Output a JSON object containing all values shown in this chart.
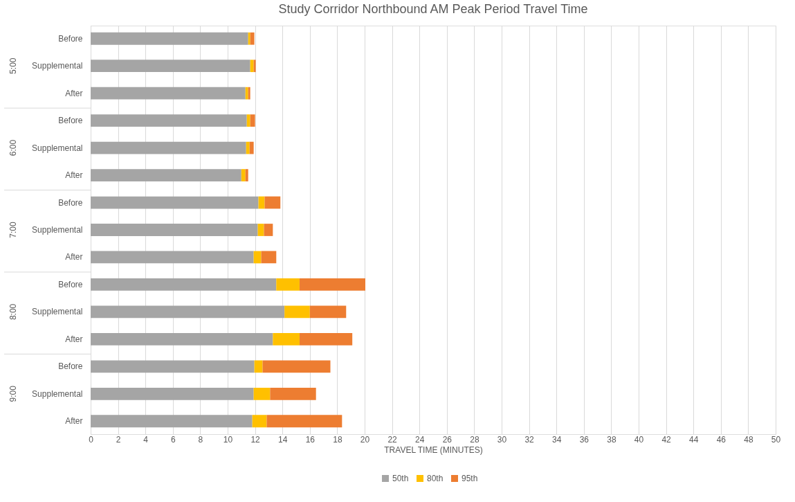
{
  "chart_data": {
    "type": "bar",
    "orientation": "horizontal",
    "stacked": true,
    "title": "Study Corridor Northbound AM Peak Period Travel Time",
    "xlabel": "TRAVEL TIME (MINUTES)",
    "categories": [
      "Before",
      "Supplemental",
      "After",
      "Before",
      "Supplemental",
      "After",
      "Before",
      "Supplemental",
      "After",
      "Before",
      "Supplemental",
      "After",
      "Before",
      "Supplemental",
      "After"
    ],
    "annotations": [
      "5:00",
      "6:00",
      "7:00",
      "8:00",
      "9:00"
    ],
    "series": [
      {
        "name": "50th",
        "color": "#a5a5a5",
        "values": [
          11.5,
          11.65,
          11.3,
          11.4,
          11.35,
          11.0,
          12.25,
          12.2,
          11.9,
          13.55,
          14.15,
          13.3,
          11.95,
          11.9,
          11.8
        ]
      },
      {
        "name": "80th",
        "color": "#ffc000",
        "values": [
          0.15,
          0.25,
          0.2,
          0.25,
          0.25,
          0.3,
          0.45,
          0.45,
          0.55,
          1.7,
          1.85,
          1.95,
          0.6,
          1.2,
          1.05
        ]
      },
      {
        "name": "95th",
        "color": "#ed7d31",
        "values": [
          0.3,
          0.15,
          0.15,
          0.35,
          0.3,
          0.2,
          1.15,
          0.65,
          1.1,
          4.8,
          2.65,
          3.85,
          4.95,
          3.35,
          5.5
        ]
      }
    ],
    "xlim": [
      0,
      50
    ],
    "xticks": [
      0,
      2,
      4,
      6,
      8,
      10,
      12,
      14,
      16,
      18,
      20,
      22,
      24,
      26,
      28,
      30,
      32,
      34,
      36,
      38,
      40,
      42,
      44,
      46,
      48,
      50
    ],
    "grid": "x",
    "legend": "bottom"
  }
}
